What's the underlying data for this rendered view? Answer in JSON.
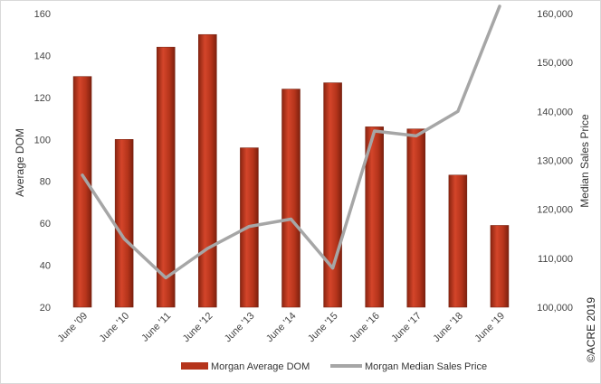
{
  "chart_data": {
    "type": "bar",
    "categories": [
      "June '09",
      "June '10",
      "June '11",
      "June '12",
      "June '13",
      "June '14",
      "June '15",
      "June '16",
      "June '17",
      "June '18",
      "June '19"
    ],
    "series": [
      {
        "name": "Morgan Average DOM",
        "type": "bar",
        "axis": "left",
        "color": "#b5341b",
        "values": [
          130,
          100,
          144,
          150,
          96,
          124,
          127,
          106,
          105,
          83,
          59
        ]
      },
      {
        "name": "Morgan Median Sales Price",
        "type": "line",
        "axis": "right",
        "color": "#a6a6a6",
        "values": [
          127000,
          114000,
          106000,
          112000,
          116500,
          118000,
          108000,
          136000,
          135000,
          140000,
          161500
        ]
      }
    ],
    "ylabel": "Average DOM",
    "ylim": [
      20,
      160
    ],
    "yticks": [
      20,
      40,
      60,
      80,
      100,
      120,
      140,
      160
    ],
    "y2label": "Median Sales Price",
    "y2lim": [
      100000,
      160000
    ],
    "y2ticks": [
      100000,
      110000,
      120000,
      130000,
      140000,
      150000,
      160000
    ],
    "y2tick_labels": [
      "100,000",
      "110,000",
      "120,000",
      "130,000",
      "140,000",
      "150,000",
      "160,000"
    ],
    "grid": false,
    "legend_position": "bottom"
  },
  "copyright": "©ACRE 2019"
}
